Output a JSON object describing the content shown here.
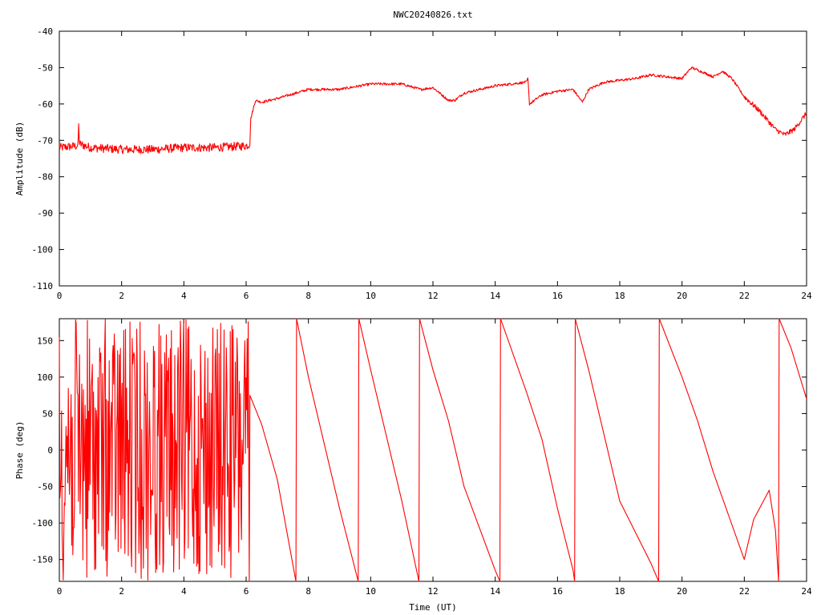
{
  "chart_data": [
    {
      "type": "line",
      "title": "NWC20240826.txt",
      "xlabel": "",
      "ylabel": "Amplitude (dB)",
      "xlim": [
        0,
        24
      ],
      "ylim": [
        -110,
        -40
      ],
      "x_ticks": [
        0,
        2,
        4,
        6,
        8,
        10,
        12,
        14,
        16,
        18,
        20,
        22,
        24
      ],
      "y_ticks": [
        -40,
        -50,
        -60,
        -70,
        -80,
        -90,
        -100,
        -110
      ],
      "x_tick_labels": [
        "0",
        "2",
        "4",
        "6",
        "8",
        "10",
        "12",
        "14",
        "16",
        "18",
        "20",
        "22",
        "24"
      ],
      "y_tick_labels": [
        "-40",
        "-50",
        "-60",
        "-70",
        "-80",
        "-90",
        "-100",
        "-110"
      ],
      "grid": false,
      "legend": "none",
      "color": "#ff0000",
      "series": [
        {
          "x": [
            0,
            0.6,
            0.62,
            0.65,
            1,
            2,
            3,
            4,
            5,
            6,
            6.12,
            6.15,
            6.3,
            6.5,
            7,
            8,
            9,
            10,
            11,
            11.6,
            12,
            12.5,
            12.7,
            13,
            14,
            15,
            15.05,
            15.1,
            15.5,
            16,
            16.5,
            16.8,
            17,
            17.5,
            18,
            18.5,
            19,
            19.5,
            20,
            20.3,
            20.6,
            21,
            21.3,
            21.6,
            22,
            22.5,
            23,
            23.3,
            23.6,
            24
          ],
          "y": [
            -72,
            -71.5,
            -66,
            -71,
            -72,
            -72.5,
            -72.5,
            -72,
            -72,
            -71.5,
            -71,
            -64,
            -59,
            -59.5,
            -58.5,
            -56,
            -56,
            -54.5,
            -54.5,
            -56,
            -55.5,
            -59,
            -59,
            -57,
            -55,
            -54,
            -53,
            -60,
            -57.5,
            -56.5,
            -56,
            -59.5,
            -56,
            -54,
            -53.5,
            -53,
            -52,
            -52.5,
            -53,
            -50,
            -51,
            -52.5,
            -51,
            -53,
            -58,
            -62,
            -67,
            -68.5,
            -67,
            -62.5
          ]
        }
      ]
    },
    {
      "type": "line",
      "title": "",
      "xlabel": "Time (UT)",
      "ylabel": "Phase (deg)",
      "xlim": [
        0,
        24
      ],
      "ylim": [
        -180,
        180
      ],
      "x_ticks": [
        0,
        2,
        4,
        6,
        8,
        10,
        12,
        14,
        16,
        18,
        20,
        22,
        24
      ],
      "y_ticks": [
        150,
        100,
        50,
        0,
        -50,
        -100,
        -150
      ],
      "x_tick_labels": [
        "0",
        "2",
        "4",
        "6",
        "8",
        "10",
        "12",
        "14",
        "16",
        "18",
        "20",
        "22",
        "24"
      ],
      "y_tick_labels": [
        "150",
        "100",
        "50",
        "0",
        "-50",
        "-100",
        "-150"
      ],
      "grid": false,
      "legend": "none",
      "color": "#ff0000",
      "noisy_interval": [
        0,
        6.1
      ],
      "series": [
        {
          "x": [
            6.1,
            6.12,
            6.5,
            7,
            7.6,
            7.62,
            8,
            9,
            9.6,
            9.62,
            10,
            11,
            11.55,
            11.57,
            12,
            12.5,
            13,
            14,
            14.15,
            14.17,
            15,
            15.5,
            16,
            16.5,
            16.55,
            16.57,
            17,
            17.5,
            18,
            19,
            19.25,
            19.27,
            20,
            20.5,
            21,
            21.5,
            22,
            22.3,
            22.8,
            23,
            23.1,
            23.12,
            23.5,
            24
          ],
          "y": [
            -180,
            75,
            35,
            -40,
            -180,
            180,
            100,
            -80,
            -180,
            180,
            110,
            -70,
            -180,
            180,
            110,
            40,
            -50,
            -165,
            -180,
            180,
            80,
            15,
            -80,
            -165,
            -180,
            180,
            110,
            20,
            -70,
            -155,
            -180,
            180,
            100,
            40,
            -30,
            -90,
            -150,
            -95,
            -55,
            -110,
            -180,
            180,
            140,
            70
          ]
        }
      ]
    }
  ]
}
